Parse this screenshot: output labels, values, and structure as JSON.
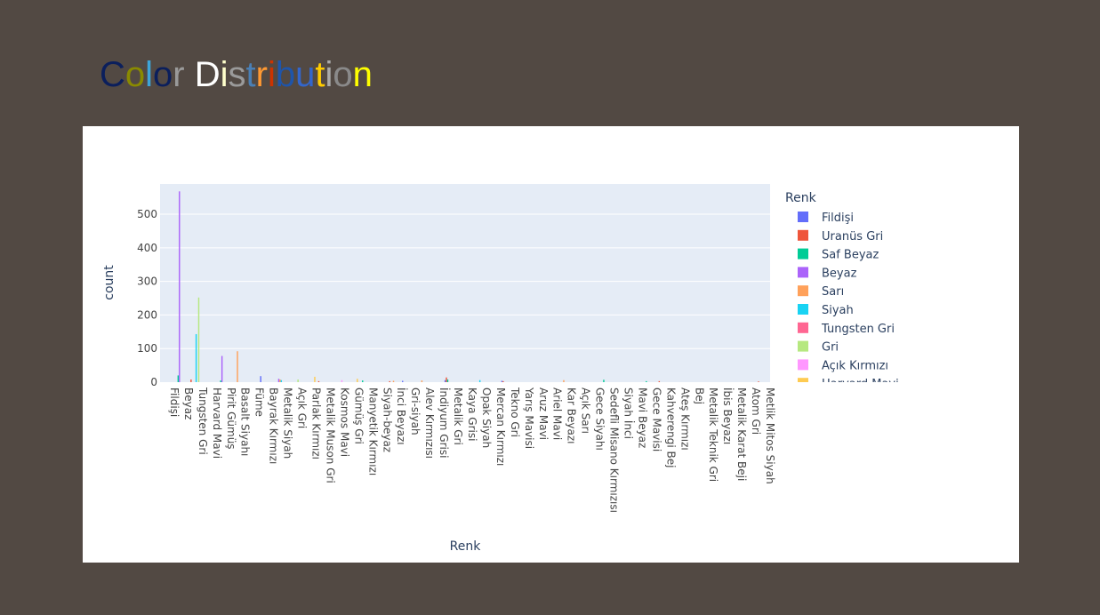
{
  "page": {
    "title": "Color Distribution",
    "title_colors": [
      "#0b1f5c",
      "#8a8a00",
      "#3da5d9",
      "#0b1f5c",
      "#9a9a9a",
      "#ffffff",
      "#ffffcc",
      "#9a9a9a",
      "#4a7fb5",
      "#ff9933",
      "#cc3300",
      "#1f55aa",
      "#3366cc",
      "#ffcc00",
      "#aaaaaa",
      "#8a8a8a",
      "#ffff00",
      "#ffff33"
    ]
  },
  "chart_data": {
    "type": "bar",
    "xlabel": "Renk",
    "ylabel": "count",
    "ylim": [
      0,
      590
    ],
    "yticks": [
      0,
      100,
      200,
      300,
      400,
      500
    ],
    "grid": true,
    "legend_title": "Renk",
    "legend_position": "right",
    "x_labels": [
      "Fildişi",
      "Beyaz",
      "Tungsten Gri",
      "Harvard Mavi",
      "Pirit Gümüş",
      "Basalt Siyahı",
      "Füme",
      "Bayrak Kırmızı",
      "Metalik Siyah",
      "Açık Gri",
      "Parlak Kırmızı",
      "Metalik Muson Gri",
      "Kosmos Mavi",
      "Gümüş Gri",
      "Manyetik Kırmızı",
      "Siyah-beyaz",
      "İnci Beyazı",
      "Gri-siyah",
      "Alev Kırmızısı",
      "İndiyum Grisi",
      "Metalik Gri",
      "Kaya Grisi",
      "Opak Siyah",
      "Mercan Kırmızı",
      "Tekno Gri",
      "Yarış Mavisi",
      "Aruz Mavi",
      "Ariel Mavi",
      "Kar Beyazı",
      "Açık Sarı",
      "Gece Siyahı",
      "Sedefli Misano Kırmızısı",
      "Siyah İnci",
      "Mavi Beyaz",
      "Gece Mavisi",
      "Kahverengi Bej",
      "Ateş Kırmızı",
      "Bej",
      "Metalik Teknik Gri",
      "İbis Beyazı",
      "Metalik Karat Beji",
      "Atom Gri",
      "Metlik Mitos Siyah"
    ],
    "series": [
      {
        "name": "Fildişi",
        "color": "#636efa",
        "values": [
          0,
          0,
          0,
          0,
          0,
          0,
          0,
          18,
          0,
          0,
          0,
          0,
          0,
          0,
          0,
          0,
          0,
          4,
          0,
          0,
          6,
          0,
          0,
          0,
          4,
          0,
          0,
          0,
          0,
          0,
          0,
          0,
          0,
          0,
          0,
          0,
          0,
          0,
          0,
          0,
          0,
          0,
          0
        ]
      },
      {
        "name": "Uranüs Gri",
        "color": "#ef553b",
        "values": [
          0,
          0,
          8,
          0,
          0,
          0,
          0,
          0,
          0,
          0,
          0,
          3,
          0,
          0,
          0,
          0,
          3,
          0,
          0,
          0,
          14,
          0,
          0,
          0,
          3,
          0,
          0,
          0,
          0,
          0,
          0,
          0,
          0,
          0,
          0,
          3,
          0,
          0,
          0,
          0,
          0,
          0,
          2
        ]
      },
      {
        "name": "Saf Beyaz",
        "color": "#00cc96",
        "values": [
          0,
          20,
          0,
          0,
          5,
          0,
          0,
          0,
          0,
          0,
          0,
          0,
          0,
          0,
          5,
          0,
          0,
          0,
          0,
          0,
          8,
          0,
          0,
          0,
          0,
          0,
          0,
          0,
          0,
          0,
          0,
          7,
          0,
          0,
          3,
          0,
          0,
          0,
          0,
          0,
          0,
          0,
          0
        ]
      },
      {
        "name": "Beyaz",
        "color": "#ab63fa",
        "values": [
          0,
          568,
          0,
          0,
          78,
          0,
          0,
          0,
          10,
          0,
          0,
          0,
          0,
          0,
          0,
          0,
          0,
          0,
          0,
          0,
          0,
          0,
          0,
          0,
          0,
          0,
          0,
          0,
          0,
          0,
          0,
          0,
          0,
          0,
          0,
          0,
          0,
          0,
          0,
          0,
          0,
          0,
          0
        ]
      },
      {
        "name": "Sarı",
        "color": "#ffa15a",
        "values": [
          0,
          0,
          0,
          0,
          0,
          92,
          0,
          0,
          8,
          0,
          0,
          0,
          0,
          0,
          0,
          0,
          4,
          0,
          5,
          0,
          0,
          0,
          0,
          0,
          0,
          0,
          0,
          0,
          6,
          0,
          0,
          0,
          0,
          0,
          0,
          0,
          0,
          0,
          0,
          0,
          0,
          0,
          0
        ]
      },
      {
        "name": "Siyah",
        "color": "#19d3f3",
        "values": [
          0,
          0,
          143,
          0,
          0,
          0,
          0,
          0,
          6,
          0,
          0,
          0,
          0,
          0,
          0,
          0,
          0,
          0,
          0,
          0,
          0,
          0,
          6,
          0,
          0,
          0,
          0,
          0,
          0,
          0,
          0,
          0,
          0,
          0,
          0,
          0,
          0,
          0,
          0,
          0,
          0,
          0,
          0
        ]
      },
      {
        "name": "Tungsten Gri",
        "color": "#ff6692",
        "values": [
          0,
          0,
          0,
          0,
          0,
          0,
          0,
          0,
          0,
          0,
          0,
          0,
          0,
          0,
          0,
          0,
          0,
          0,
          0,
          0,
          0,
          0,
          0,
          0,
          0,
          0,
          0,
          0,
          0,
          0,
          0,
          0,
          0,
          0,
          0,
          0,
          0,
          0,
          0,
          0,
          0,
          0,
          0
        ]
      },
      {
        "name": "Gri",
        "color": "#b6e880",
        "values": [
          0,
          0,
          252,
          0,
          0,
          0,
          0,
          0,
          0,
          8,
          0,
          0,
          0,
          0,
          0,
          0,
          0,
          0,
          0,
          0,
          0,
          0,
          0,
          0,
          0,
          0,
          0,
          0,
          0,
          0,
          0,
          0,
          0,
          0,
          0,
          0,
          0,
          0,
          0,
          0,
          0,
          0,
          0
        ]
      },
      {
        "name": "Açık Kırmızı",
        "color": "#ff97ff",
        "values": [
          0,
          0,
          0,
          0,
          0,
          0,
          0,
          0,
          0,
          0,
          0,
          0,
          6,
          0,
          0,
          0,
          0,
          0,
          0,
          0,
          0,
          0,
          0,
          0,
          0,
          0,
          0,
          0,
          0,
          0,
          0,
          0,
          0,
          0,
          0,
          0,
          0,
          0,
          0,
          0,
          0,
          0,
          0
        ]
      },
      {
        "name": "Harvard Mavi",
        "color": "#fecb52",
        "values": [
          0,
          0,
          0,
          0,
          0,
          0,
          0,
          0,
          0,
          0,
          16,
          0,
          0,
          10,
          0,
          0,
          0,
          0,
          0,
          0,
          0,
          0,
          0,
          0,
          0,
          0,
          0,
          0,
          0,
          0,
          0,
          0,
          0,
          0,
          0,
          0,
          0,
          0,
          0,
          0,
          0,
          0,
          0
        ]
      }
    ]
  }
}
